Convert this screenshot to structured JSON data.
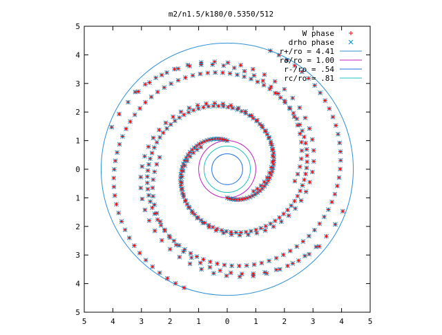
{
  "chart_data": {
    "type": "scatter",
    "title": "m2/n1.5/k180/0.5350/512",
    "xlim": [
      -5,
      5
    ],
    "ylim": [
      -5,
      5
    ],
    "x_ticks": [
      -5,
      -4,
      -3,
      -2,
      -1,
      0,
      1,
      2,
      3,
      4,
      5
    ],
    "x_tick_labels": [
      "5",
      "4",
      "3",
      "2",
      "1",
      "0",
      "1",
      "2",
      "3",
      "4",
      "5"
    ],
    "y_ticks": [
      5,
      4,
      3,
      2,
      1,
      0,
      -1,
      -2,
      -3,
      -4,
      -5
    ],
    "y_tick_labels": [
      "5",
      "4",
      "3",
      "2",
      "1",
      "0",
      "1",
      "2",
      "3",
      "4",
      "5"
    ],
    "grid": false,
    "legend_position": "top-right",
    "legend": [
      {
        "label": "W phase",
        "kind": "plus",
        "color": "#ff0000"
      },
      {
        "label": "drho phase",
        "kind": "cross",
        "color": "#0090d0"
      },
      {
        "label": "r+/ro = 4.41",
        "kind": "line",
        "color": "#2b8fd6"
      },
      {
        "label": "ro/ro = 1.00",
        "kind": "line",
        "color": "#c020c0"
      },
      {
        "label": "r-/ro = .54",
        "kind": "line",
        "color": "#2070e0"
      },
      {
        "label": "rc/ro = .81",
        "kind": "line",
        "color": "#20c0c0"
      }
    ],
    "circles": [
      {
        "name": "r+/ro",
        "radius": 4.41,
        "color": "#2b8fd6"
      },
      {
        "name": "ro/ro",
        "radius": 1.0,
        "color": "#c020c0"
      },
      {
        "name": "r-/ro",
        "radius": 0.54,
        "color": "#2070e0"
      },
      {
        "name": "rc/ro",
        "radius": 0.81,
        "color": "#20c0c0"
      }
    ],
    "series": [
      {
        "name": "W phase",
        "marker": "plus",
        "color": "#ff0000"
      },
      {
        "name": "drho phase",
        "marker": "cross",
        "color": "#0090d0"
      }
    ],
    "spirals": [
      {
        "arms": 2,
        "r_start": 1.0,
        "r_end": 4.41,
        "theta_start_deg": 90,
        "winding_deg": 520,
        "n_points": 120
      },
      {
        "arms": 2,
        "r_start": 1.2,
        "r_end": 4.3,
        "theta_start_deg": 140,
        "winding_deg": 380,
        "n_points": 55
      },
      {
        "arms": 2,
        "r_start": 2.4,
        "r_end": 4.2,
        "theta_start_deg": 170,
        "winding_deg": 150,
        "n_points": 26
      }
    ]
  }
}
